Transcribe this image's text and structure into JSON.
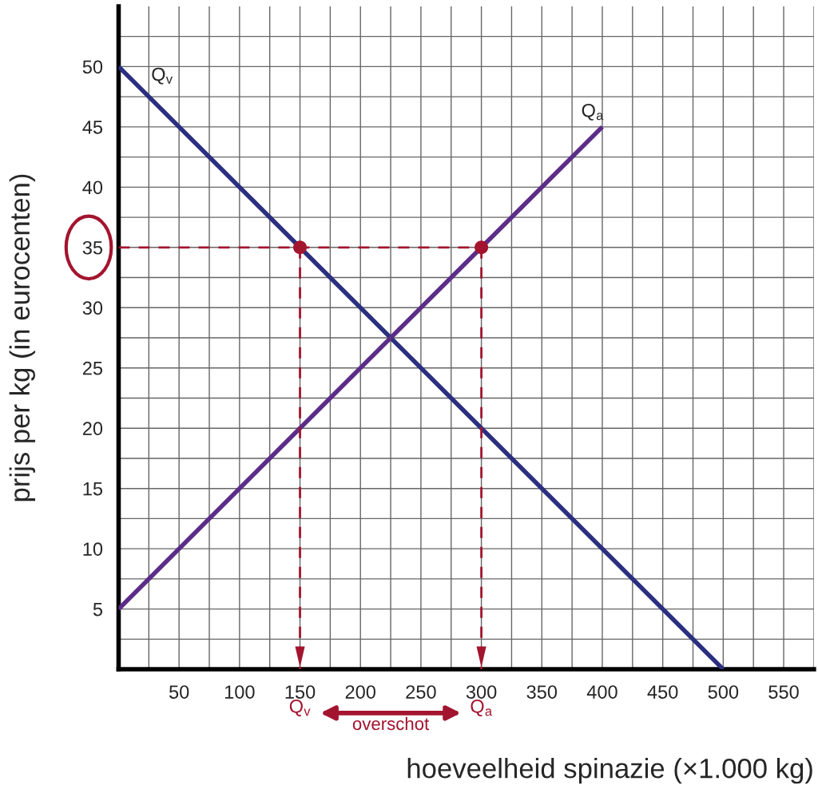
{
  "chart_data": {
    "type": "line",
    "xlabel": "hoeveelheid spinazie (×1.000 kg)",
    "ylabel": "prijs per kg (in eurocenten)",
    "series": [
      {
        "x": [
          0,
          500
        ],
        "values": [
          50,
          0
        ],
        "color": "#2b2f80"
      },
      {
        "x": [
          0,
          400
        ],
        "values": [
          5,
          45
        ],
        "color": "#5c2d88"
      },
      {
        "type": "line",
        "x": [
          0,
          300
        ],
        "values": [
          35,
          35
        ],
        "color": "#a3142e",
        "line_style": "dashed"
      },
      {
        "type": "line",
        "x": [
          150,
          150
        ],
        "values": [
          35,
          0
        ],
        "color": "#a3142e",
        "line_style": "dashed"
      },
      {
        "type": "line",
        "x": [
          300,
          300
        ],
        "values": [
          35,
          0
        ],
        "color": "#a3142e",
        "line_style": "dashed"
      },
      {
        "type": "scatter",
        "x": [
          150,
          300
        ],
        "values": [
          35,
          35
        ],
        "color": "#a3142e",
        "marker": "circle"
      }
    ],
    "annotations": [
      "Q$_{v}$",
      "Q$_{a}$",
      "Q$_{v}$",
      "Q$_{a}$",
      "overschot"
    ],
    "xlim": [
      0,
      575
    ],
    "ylim": [
      0,
      55
    ],
    "xticks": [
      {
        "value": 0,
        "label": null
      },
      {
        "value": 25,
        "label": null
      },
      50,
      {
        "value": 75,
        "label": null
      },
      100,
      {
        "value": 125,
        "label": null
      },
      150,
      {
        "value": 175,
        "label": null
      },
      200,
      {
        "value": 225,
        "label": null
      },
      250,
      {
        "value": 275,
        "label": null
      },
      300,
      {
        "value": 325,
        "label": null
      },
      350,
      {
        "value": 375,
        "label": null
      },
      400,
      {
        "value": 425,
        "label": null
      },
      450,
      {
        "value": 475,
        "label": null
      },
      500,
      {
        "value": 525,
        "label": null
      },
      550,
      {
        "value": 575,
        "label": null
      }
    ],
    "yticks": [
      {
        "value": 0,
        "label": null
      },
      {
        "value": 2.5,
        "label": null
      },
      5,
      {
        "value": 7.5,
        "label": null
      },
      10,
      {
        "value": 12.5,
        "label": null
      },
      15,
      {
        "value": 17.5,
        "label": null
      },
      20,
      {
        "value": 22.5,
        "label": null
      },
      25,
      {
        "value": 27.5,
        "label": null
      },
      30,
      {
        "value": 32.5,
        "label": null
      },
      35,
      {
        "value": 37.5,
        "label": null
      },
      40,
      {
        "value": 42.5,
        "label": null
      },
      45,
      {
        "value": 47.5,
        "label": null
      },
      50,
      {
        "value": 52.5,
        "label": null
      }
    ],
    "grid": true
  }
}
